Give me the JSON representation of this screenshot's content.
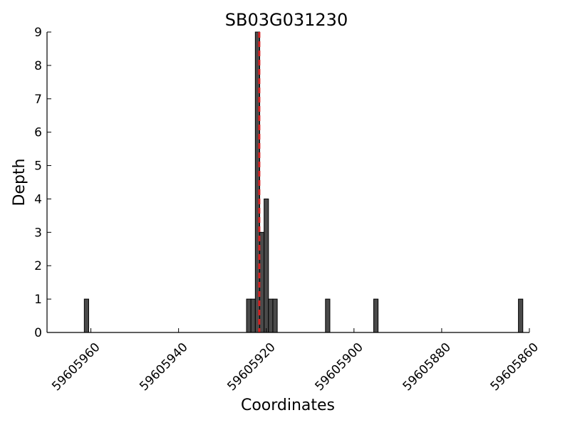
{
  "chart_data": {
    "type": "bar",
    "title": "SB03G031230",
    "xlabel": "Coordinates",
    "ylabel": "Depth",
    "x_reversed": true,
    "xlim": [
      59605970,
      59605860
    ],
    "ylim": [
      0,
      9
    ],
    "xticks": [
      59605960,
      59605940,
      59605920,
      59605900,
      59605880,
      59605860
    ],
    "xtick_labels": [
      "59605960",
      "59605940",
      "59605920",
      "59605900",
      "59605880",
      "59605860"
    ],
    "yticks": [
      0,
      1,
      2,
      3,
      4,
      5,
      6,
      7,
      8,
      9
    ],
    "ytick_labels": [
      "0",
      "1",
      "2",
      "3",
      "4",
      "5",
      "6",
      "7",
      "8",
      "9"
    ],
    "bin_width": 1,
    "bars": [
      {
        "x": 59605961,
        "value": 1
      },
      {
        "x": 59605924,
        "value": 1
      },
      {
        "x": 59605923,
        "value": 1
      },
      {
        "x": 59605922,
        "value": 9
      },
      {
        "x": 59605921,
        "value": 3
      },
      {
        "x": 59605920,
        "value": 4
      },
      {
        "x": 59605919,
        "value": 1
      },
      {
        "x": 59605918,
        "value": 1
      },
      {
        "x": 59605906,
        "value": 1
      },
      {
        "x": 59605895,
        "value": 1
      },
      {
        "x": 59605862,
        "value": 1
      }
    ],
    "reference_line": {
      "x": 59605921.6,
      "style": "dashed",
      "color": "#d62020"
    },
    "bar_color": "#4a4a4a",
    "bar_edge_color": "#000000",
    "grid": false,
    "legend": "none"
  }
}
